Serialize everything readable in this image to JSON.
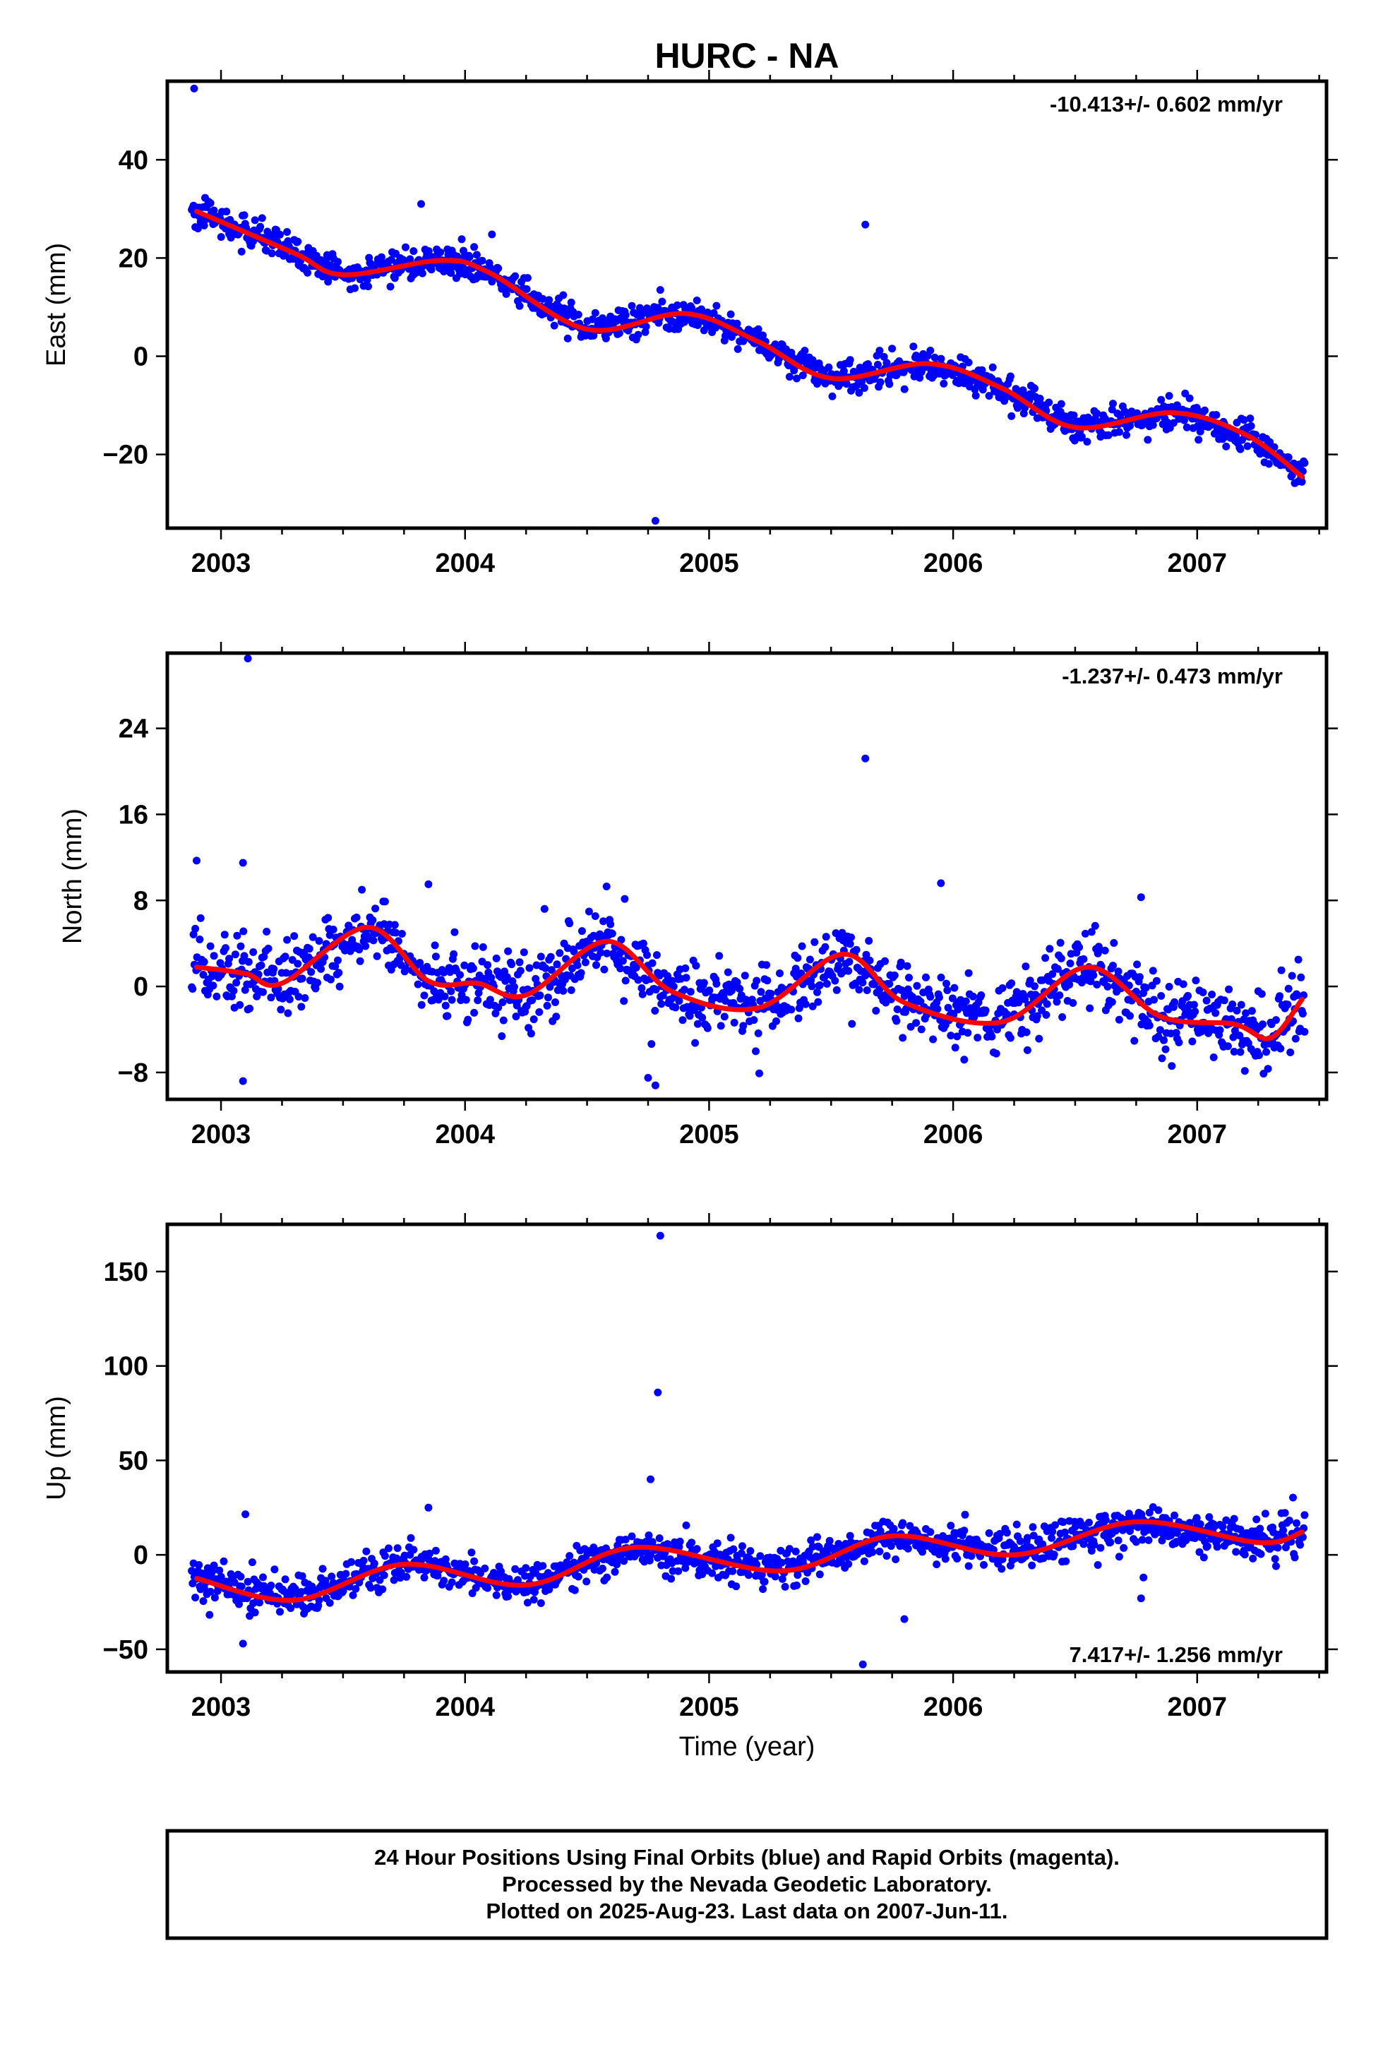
{
  "chart_data": {
    "type": "scatter",
    "title": "HURC - NA",
    "xlabel": "Time (year)",
    "xlim": [
      2002.78,
      2007.53
    ],
    "xticks": [
      2003,
      2004,
      2005,
      2006,
      2007
    ],
    "xtick_labels": [
      "2003",
      "2004",
      "2005",
      "2006",
      "2007"
    ],
    "panels": [
      {
        "name": "east",
        "ylabel": "East (mm)",
        "ylim": [
          -35,
          56
        ],
        "yticks": [
          -20,
          0,
          20,
          40
        ],
        "ytick_labels": [
          "−20",
          "0",
          "20",
          "40"
        ],
        "rate": "-10.413+/- 0.602 mm/yr",
        "rate_position": "top-right",
        "model": {
          "mean": 0,
          "slope": -10.413,
          "t0": 2005.15,
          "annual_amp": 2.5,
          "annual_phase": 0.45,
          "semi_amp": 1.0,
          "semi_phase": 0.1,
          "noise": 1.5
        },
        "outliers": [
          [
            2002.89,
            54.5
          ],
          [
            2005.64,
            26.8
          ],
          [
            2004.78,
            -33.5
          ],
          [
            2003.82,
            31.0
          ],
          [
            2004.11,
            24.8
          ],
          [
            2004.8,
            13.5
          ]
        ],
        "fit_line": [
          [
            2002.9,
            29.5
          ],
          [
            2003.3,
            21.0
          ],
          [
            2003.5,
            16.6
          ],
          [
            2003.9,
            19.5
          ],
          [
            2004.1,
            17.0
          ],
          [
            2004.5,
            5.5
          ],
          [
            2004.9,
            8.7
          ],
          [
            2005.2,
            3.0
          ],
          [
            2005.5,
            -4.5
          ],
          [
            2005.9,
            -1.5
          ],
          [
            2006.2,
            -6.5
          ],
          [
            2006.5,
            -14.5
          ],
          [
            2006.9,
            -11.5
          ],
          [
            2007.2,
            -16.0
          ],
          [
            2007.43,
            -24.5
          ]
        ]
      },
      {
        "name": "north",
        "ylabel": "North (mm)",
        "ylim": [
          -10.5,
          31
        ],
        "yticks": [
          -8,
          0,
          8,
          16,
          24
        ],
        "ytick_labels": [
          "−8",
          "0",
          "8",
          "16",
          "24"
        ],
        "rate": "-1.237+/- 0.473 mm/yr",
        "rate_position": "top-right",
        "model": {
          "mean": 0.0,
          "slope": -1.237,
          "t0": 2005.15,
          "annual_amp": 3.0,
          "annual_phase": 0.55,
          "semi_amp": 1.2,
          "semi_phase": 0.3,
          "noise": 1.6
        },
        "outliers": [
          [
            2003.11,
            30.5
          ],
          [
            2005.64,
            21.2
          ],
          [
            2003.09,
            11.5
          ],
          [
            2002.9,
            11.7
          ],
          [
            2005.95,
            9.6
          ],
          [
            2003.85,
            9.5
          ],
          [
            2004.58,
            9.3
          ],
          [
            2004.75,
            -8.5
          ],
          [
            2004.78,
            -9.2
          ],
          [
            2003.09,
            -8.8
          ],
          [
            2006.77,
            8.3
          ]
        ],
        "fit_line": [
          [
            2002.9,
            1.8
          ],
          [
            2003.1,
            1.2
          ],
          [
            2003.25,
            0.3
          ],
          [
            2003.6,
            5.5
          ],
          [
            2003.85,
            0.5
          ],
          [
            2004.05,
            0.3
          ],
          [
            2004.25,
            -0.8
          ],
          [
            2004.58,
            4.2
          ],
          [
            2004.85,
            -0.5
          ],
          [
            2005.2,
            -2.0
          ],
          [
            2005.55,
            3.0
          ],
          [
            2005.8,
            -1.5
          ],
          [
            2006.2,
            -3.3
          ],
          [
            2006.55,
            1.8
          ],
          [
            2006.85,
            -2.8
          ],
          [
            2007.15,
            -3.5
          ],
          [
            2007.3,
            -4.8
          ],
          [
            2007.43,
            -1.2
          ]
        ]
      },
      {
        "name": "up",
        "ylabel": "Up (mm)",
        "ylim": [
          -62,
          175
        ],
        "yticks": [
          -50,
          0,
          50,
          100,
          150
        ],
        "ytick_labels": [
          "−50",
          "0",
          "50",
          "100",
          "150"
        ],
        "rate": "7.417+/- 1.256 mm/yr",
        "rate_position": "bottom-right",
        "model": {
          "mean": -3.0,
          "slope": 7.417,
          "t0": 2005.15,
          "annual_amp": 6.0,
          "annual_phase": 0.72,
          "semi_amp": 2.5,
          "semi_phase": 0.2,
          "noise": 5.0
        },
        "outliers": [
          [
            2004.8,
            169.0
          ],
          [
            2004.79,
            86.0
          ],
          [
            2004.76,
            40.0
          ],
          [
            2003.1,
            21.5
          ],
          [
            2003.09,
            -47.0
          ],
          [
            2003.85,
            25.0
          ],
          [
            2005.63,
            -58.0
          ],
          [
            2005.8,
            -34.0
          ],
          [
            2006.77,
            -23.0
          ],
          [
            2006.78,
            -12.0
          ]
        ],
        "fit_line": [
          [
            2002.9,
            -12.5
          ],
          [
            2003.3,
            -24.0
          ],
          [
            2003.75,
            -5.0
          ],
          [
            2004.25,
            -16.0
          ],
          [
            2004.7,
            4.0
          ],
          [
            2005.3,
            -8.5
          ],
          [
            2005.75,
            10.0
          ],
          [
            2006.25,
            0.0
          ],
          [
            2006.75,
            17.5
          ],
          [
            2007.25,
            6.5
          ],
          [
            2007.43,
            12.0
          ]
        ]
      }
    ],
    "data_range": [
      2002.88,
      2007.44
    ],
    "point_color": "#0000ff",
    "line_color": "#ff0000"
  },
  "footer": {
    "line1": "24 Hour Positions Using Final Orbits (blue) and Rapid Orbits (magenta).",
    "line2": "Processed by the Nevada Geodetic Laboratory.",
    "line3": "Plotted on 2025-Aug-23. Last data on 2007-Jun-11."
  }
}
